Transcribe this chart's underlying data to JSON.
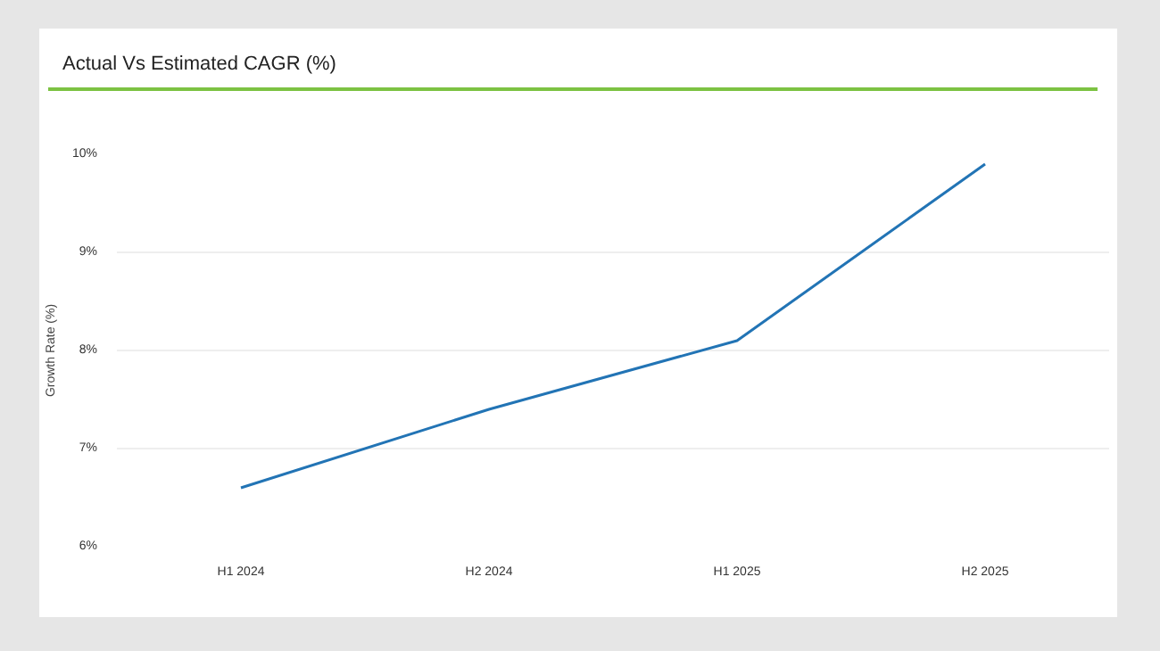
{
  "chart_data": {
    "type": "line",
    "title": "Actual Vs Estimated CAGR (%)",
    "ylabel": "Growth Rate (%)",
    "categories": [
      "H1 2024",
      "H2 2024",
      "H1 2025",
      "H2 2025"
    ],
    "series": [
      {
        "color": "#2274b5",
        "values": [
          6.6,
          7.4,
          8.1,
          9.9
        ]
      }
    ],
    "ylim": [
      6,
      10
    ],
    "yticks": [
      {
        "value": 6,
        "label": "6%"
      },
      {
        "value": 7,
        "label": "7%"
      },
      {
        "value": 8,
        "label": "8%"
      },
      {
        "value": 9,
        "label": "9%"
      },
      {
        "value": 10,
        "label": "10%"
      }
    ],
    "grid": "y",
    "marker": "none",
    "line_style": "solid"
  }
}
